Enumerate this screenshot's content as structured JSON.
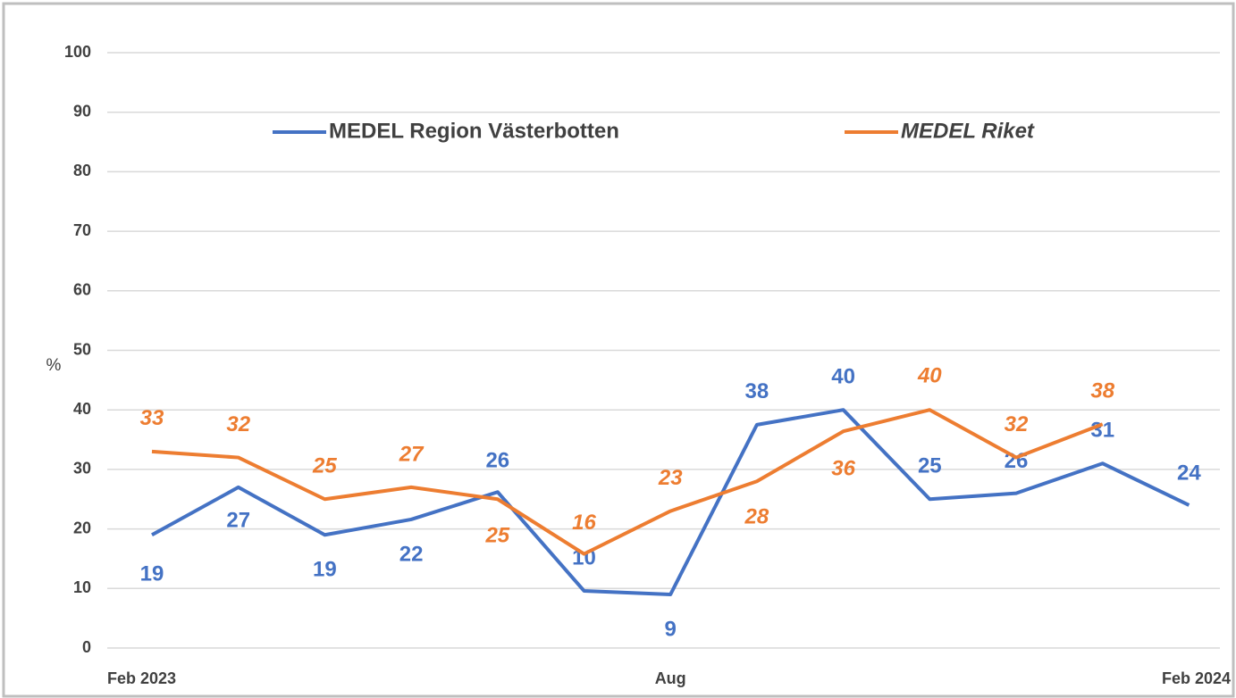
{
  "chart_data": {
    "type": "line",
    "y_label": "%",
    "categories": [
      "Feb 2023",
      null,
      null,
      null,
      null,
      null,
      "Aug",
      null,
      null,
      null,
      null,
      null,
      "Feb 2024"
    ],
    "series": [
      {
        "name": "MEDEL Region Västerbotten",
        "color": "#4472c4",
        "values": [
          19,
          27,
          19,
          21.6,
          26.2,
          9.6,
          9,
          37.5,
          40,
          25,
          26,
          31,
          24
        ],
        "value_labels": [
          "19",
          "27",
          "19",
          "22",
          "26",
          "10",
          "9",
          "38",
          "40",
          "25",
          "26",
          "31",
          "24"
        ]
      },
      {
        "name": "MEDEL Riket",
        "color": "#ed7d31",
        "values": [
          33,
          32,
          25,
          27,
          25,
          15.8,
          23,
          28,
          36.4,
          40,
          32,
          37.6,
          null
        ],
        "value_labels": [
          "33",
          "32",
          "25",
          "27",
          "25",
          "16",
          "23",
          "28",
          "36",
          "40",
          "32",
          "38",
          null
        ]
      }
    ],
    "ylim": [
      0,
      100
    ],
    "yticks": [
      0,
      10,
      20,
      30,
      40,
      50,
      60,
      70,
      80,
      90,
      100
    ],
    "grid": true
  }
}
